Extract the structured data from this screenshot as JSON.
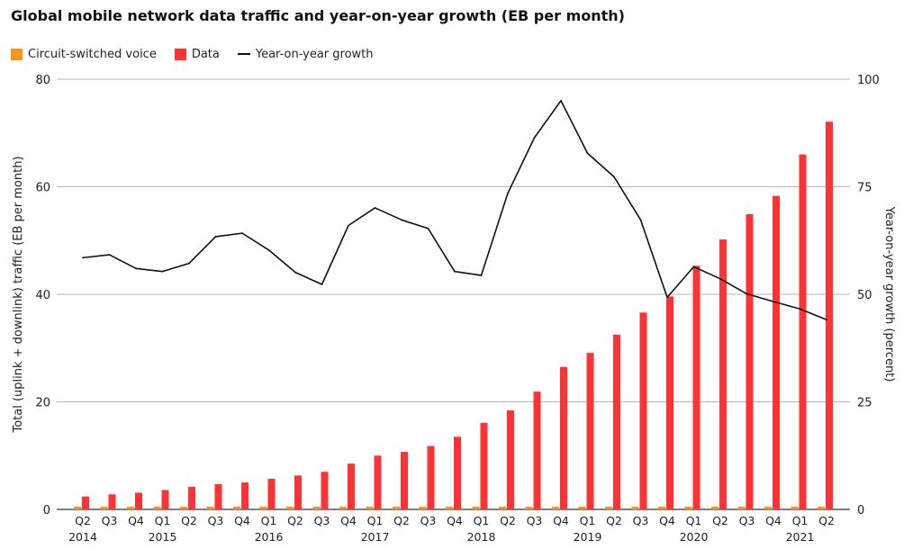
{
  "chart_data": {
    "type": "bar",
    "title": "Global mobile network data traffic and year-on-year growth (EB per month)",
    "quarters": [
      "Q2",
      "Q3",
      "Q4",
      "Q1",
      "Q2",
      "Q3",
      "Q4",
      "Q1",
      "Q2",
      "Q3",
      "Q4",
      "Q1",
      "Q2",
      "Q3",
      "Q4",
      "Q1",
      "Q2",
      "Q3",
      "Q4",
      "Q1",
      "Q2",
      "Q3",
      "Q4",
      "Q1",
      "Q2",
      "Q3",
      "Q4",
      "Q1",
      "Q2"
    ],
    "year_labels": [
      {
        "label": "2014",
        "index": 0
      },
      {
        "label": "2015",
        "index": 3
      },
      {
        "label": "2016",
        "index": 7
      },
      {
        "label": "2017",
        "index": 11
      },
      {
        "label": "2018",
        "index": 15
      },
      {
        "label": "2019",
        "index": 19
      },
      {
        "label": "2020",
        "index": 23
      },
      {
        "label": "2021",
        "index": 27
      }
    ],
    "series": [
      {
        "name": "Circuit-switched voice",
        "axis": "left",
        "color": "#f7941d",
        "values": [
          0.5,
          0.5,
          0.5,
          0.5,
          0.5,
          0.5,
          0.5,
          0.5,
          0.5,
          0.5,
          0.5,
          0.5,
          0.5,
          0.5,
          0.5,
          0.5,
          0.5,
          0.5,
          0.5,
          0.5,
          0.5,
          0.5,
          0.5,
          0.5,
          0.5,
          0.5,
          0.5,
          0.5,
          0.5
        ]
      },
      {
        "name": "Data",
        "axis": "left",
        "color": "#ff3333",
        "values": [
          2.4,
          2.8,
          3.1,
          3.6,
          4.2,
          4.7,
          5.0,
          5.7,
          6.3,
          7.0,
          8.5,
          10.0,
          10.7,
          11.8,
          13.5,
          16.1,
          18.4,
          21.9,
          26.5,
          29.1,
          32.5,
          36.6,
          39.6,
          45.3,
          50.2,
          54.9,
          58.3,
          66.0,
          72.1
        ]
      },
      {
        "name": "Year-on-year growth",
        "axis": "right",
        "type": "line",
        "color": "#111111",
        "values": [
          58.5,
          59.2,
          56.0,
          55.3,
          57.2,
          63.4,
          64.2,
          60.3,
          55.1,
          52.3,
          66.0,
          70.1,
          67.3,
          65.3,
          55.3,
          54.4,
          73.5,
          86.4,
          95.0,
          82.8,
          77.3,
          67.3,
          49.3,
          56.4,
          53.6,
          50.1,
          48.3,
          46.6,
          44.1
        ]
      }
    ],
    "ylabel": "Total (uplink + downlink) traffic (EB per month)",
    "ylim": [
      0,
      80
    ],
    "yticks": [
      0,
      20,
      40,
      60,
      80
    ],
    "y2label": "Year-on-year growth (percent)",
    "y2lim": [
      0,
      100
    ],
    "y2ticks": [
      0,
      25,
      50,
      75,
      100
    ],
    "grid": true,
    "legend_position": "top-left"
  }
}
